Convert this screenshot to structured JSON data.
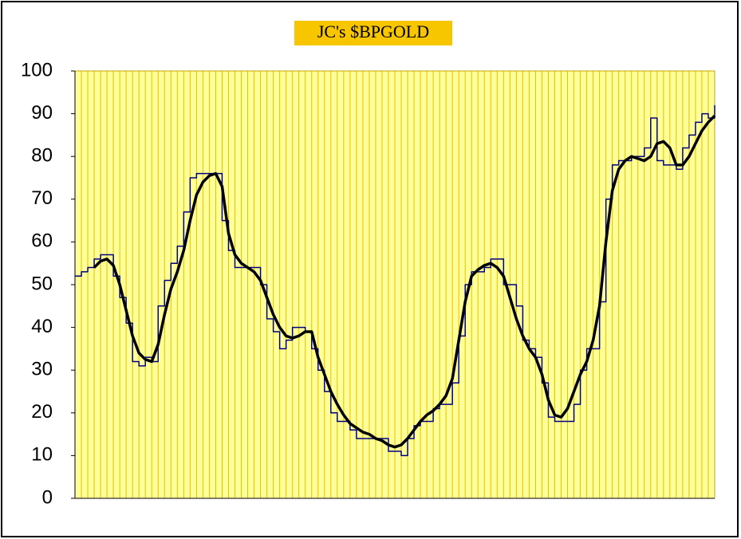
{
  "chart_data": {
    "type": "line",
    "title": "JC's $BPGOLD",
    "categories": [
      null,
      null,
      null,
      null,
      null,
      null,
      null,
      null,
      null,
      null,
      null,
      null,
      null,
      null,
      null,
      null,
      null,
      null,
      null,
      null,
      null,
      null,
      null,
      null,
      null,
      null,
      null,
      null,
      null,
      null,
      null,
      null,
      null,
      null,
      null,
      null,
      null,
      null,
      null,
      null,
      null,
      null,
      null,
      null,
      null,
      null,
      null,
      null,
      null,
      null,
      null,
      null,
      null,
      null,
      null,
      null,
      null,
      null,
      null,
      null,
      null,
      null,
      null,
      null,
      null,
      null,
      null,
      null,
      null,
      null,
      null,
      null,
      null,
      null,
      null,
      null,
      null,
      null,
      null,
      null,
      null,
      null,
      null,
      null,
      null,
      null,
      null,
      null,
      null,
      null,
      null,
      null,
      null,
      null,
      null,
      null,
      null,
      null,
      null,
      null,
      null
    ],
    "series": [
      {
        "color": "#000080",
        "step": true,
        "width": 1.5,
        "values": [
          52,
          53,
          54,
          56,
          57,
          57,
          52,
          47,
          41,
          32,
          31,
          33,
          32,
          45,
          51,
          55,
          59,
          67,
          75,
          76,
          76,
          76,
          76,
          65,
          58,
          54,
          54,
          54,
          54,
          50,
          42,
          39,
          35,
          37,
          40,
          40,
          39,
          35,
          30,
          25,
          20,
          18,
          18,
          16,
          14,
          14,
          14,
          14,
          14,
          11,
          11,
          10,
          14,
          17,
          18,
          18,
          21,
          22,
          22,
          27,
          38,
          50,
          53,
          53,
          54,
          56,
          56,
          50,
          50,
          45,
          37,
          35,
          33,
          27,
          19,
          18,
          18,
          18,
          22,
          30,
          35,
          35,
          46,
          70,
          78,
          79,
          79,
          80,
          80,
          82,
          89,
          79,
          78,
          78,
          77,
          82,
          85,
          88,
          90,
          89,
          92
        ]
      },
      {
        "color": "#000000",
        "step": false,
        "width": 3.5,
        "values": [
          null,
          null,
          null,
          54,
          55.5,
          56,
          54.5,
          50,
          44,
          38,
          34,
          32.5,
          32,
          36,
          43,
          49,
          53,
          58,
          65,
          71,
          74,
          75.5,
          76,
          73,
          62,
          57,
          55,
          54,
          53,
          51,
          47,
          43,
          40,
          38,
          37.5,
          38,
          39,
          39,
          33,
          29,
          25,
          22,
          19.5,
          17.5,
          16.5,
          15.5,
          15,
          14,
          13.5,
          12.5,
          12,
          12.5,
          14,
          16,
          18,
          19.5,
          20.5,
          22,
          24,
          28,
          37,
          46,
          52,
          53.5,
          54.5,
          55,
          54,
          52,
          47,
          42,
          38,
          35,
          33,
          29,
          23,
          19.5,
          19,
          21,
          25,
          29,
          32,
          37,
          45,
          60,
          72,
          77,
          79,
          80,
          79.5,
          79,
          80,
          83,
          83.5,
          82,
          78,
          78,
          80,
          83,
          86,
          88,
          89.5
        ]
      }
    ],
    "ylim": [
      0,
      100
    ],
    "yticks": [
      0,
      10,
      20,
      30,
      40,
      50,
      60,
      70,
      80,
      90,
      100
    ],
    "grid": true,
    "background": "#ffff99",
    "grid_color": "#e8bf00",
    "title_background": "#f7c600"
  }
}
